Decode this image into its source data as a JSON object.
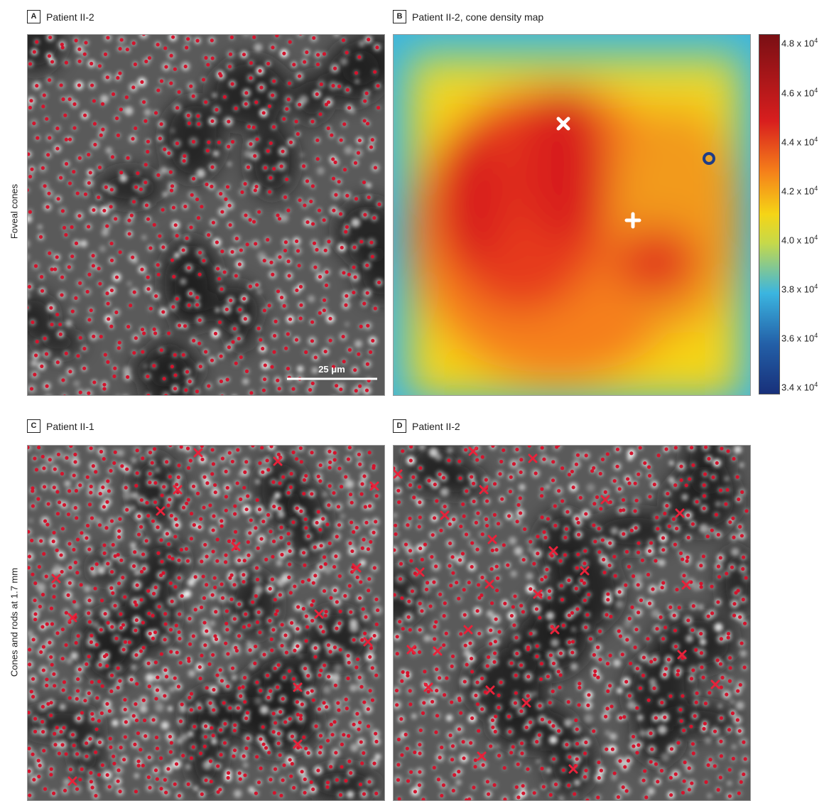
{
  "panels": {
    "A": {
      "letter": "A",
      "title": "Patient II-2"
    },
    "B": {
      "letter": "B",
      "title": "Patient II-2, cone density map"
    },
    "C": {
      "letter": "C",
      "title": "Patient II-1"
    },
    "D": {
      "letter": "D",
      "title": "Patient II-2"
    }
  },
  "row_labels": {
    "top": "Foveal cones",
    "bottom": "Cones and rods at 1.7 mm"
  },
  "scale_bar": {
    "label": "25 μm"
  },
  "colorbar": {
    "ticks": [
      {
        "mant": "4.8 x 10",
        "exp": "4"
      },
      {
        "mant": "4.6 x 10",
        "exp": "4"
      },
      {
        "mant": "4.4 x 10",
        "exp": "4"
      },
      {
        "mant": "4.2 x 10",
        "exp": "4"
      },
      {
        "mant": "4.0 x 10",
        "exp": "4"
      },
      {
        "mant": "3.8 x 10",
        "exp": "4"
      },
      {
        "mant": "3.6 x 10",
        "exp": "4"
      },
      {
        "mant": "3.4 x 10",
        "exp": "4"
      }
    ],
    "colors": [
      "#7a0f14",
      "#d81e1e",
      "#f57f1a",
      "#f5d516",
      "#c6d94a",
      "#3bb5e0",
      "#2360a8",
      "#18307a"
    ]
  },
  "markers": {
    "dot_color": "#d3142d",
    "cross_color": "#e8223a"
  }
}
